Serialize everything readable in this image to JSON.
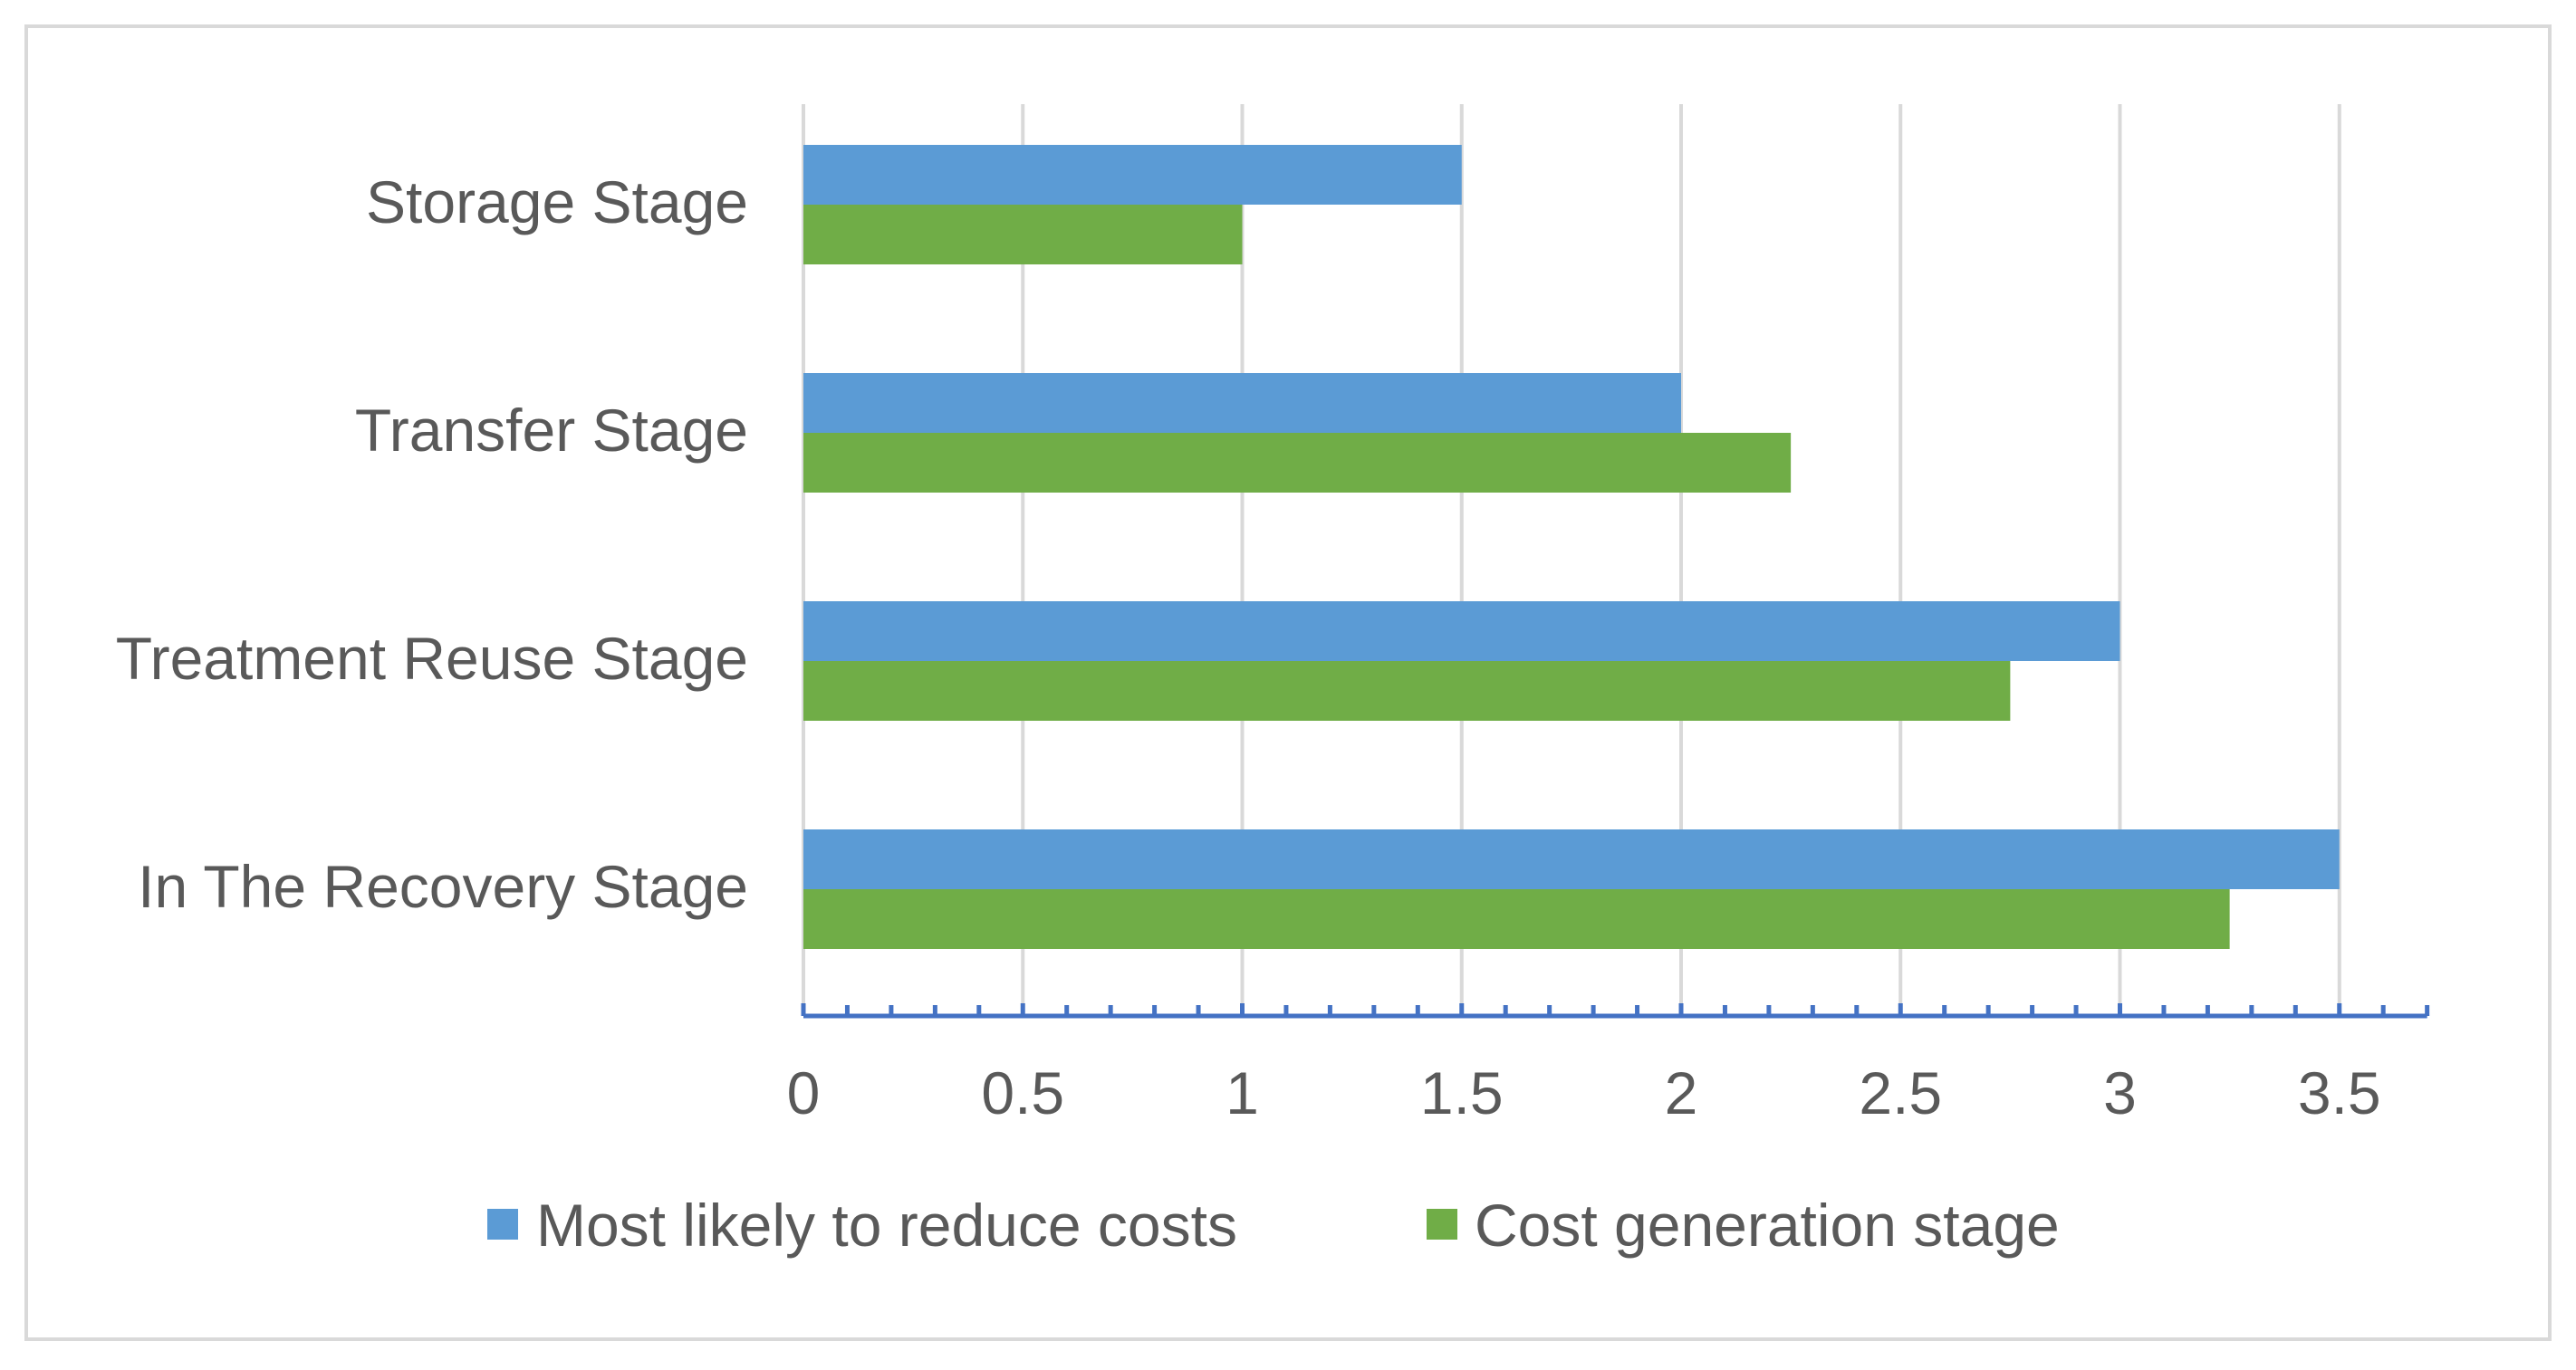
{
  "chart_data": {
    "type": "bar",
    "orientation": "horizontal",
    "title": "",
    "xlabel": "",
    "ylabel": "",
    "categories": [
      "In The Recovery Stage",
      "Treatment Reuse Stage",
      "Transfer Stage",
      "Storage Stage"
    ],
    "series": [
      {
        "name": "Most likely to reduce costs",
        "color": "#5B9BD5",
        "values": [
          3.5,
          3.0,
          2.0,
          1.5
        ]
      },
      {
        "name": "Cost generation stage",
        "color": "#70AD47",
        "values": [
          3.25,
          2.75,
          2.25,
          1.0
        ]
      }
    ],
    "xlim": [
      0,
      3.7
    ],
    "xticks": [
      0,
      0.5,
      1,
      1.5,
      2,
      2.5,
      3,
      3.5
    ],
    "xtick_labels": [
      "0",
      "0.5",
      "1",
      "1.5",
      "2",
      "2.5",
      "3",
      "3.5"
    ],
    "minor_tick_step": 0.1,
    "grid": true,
    "legend_position": "bottom",
    "colors": {
      "axis": "#4472C4",
      "grid": "#D9D9D9",
      "border": "#D9D9D9",
      "text": "#595959"
    }
  }
}
